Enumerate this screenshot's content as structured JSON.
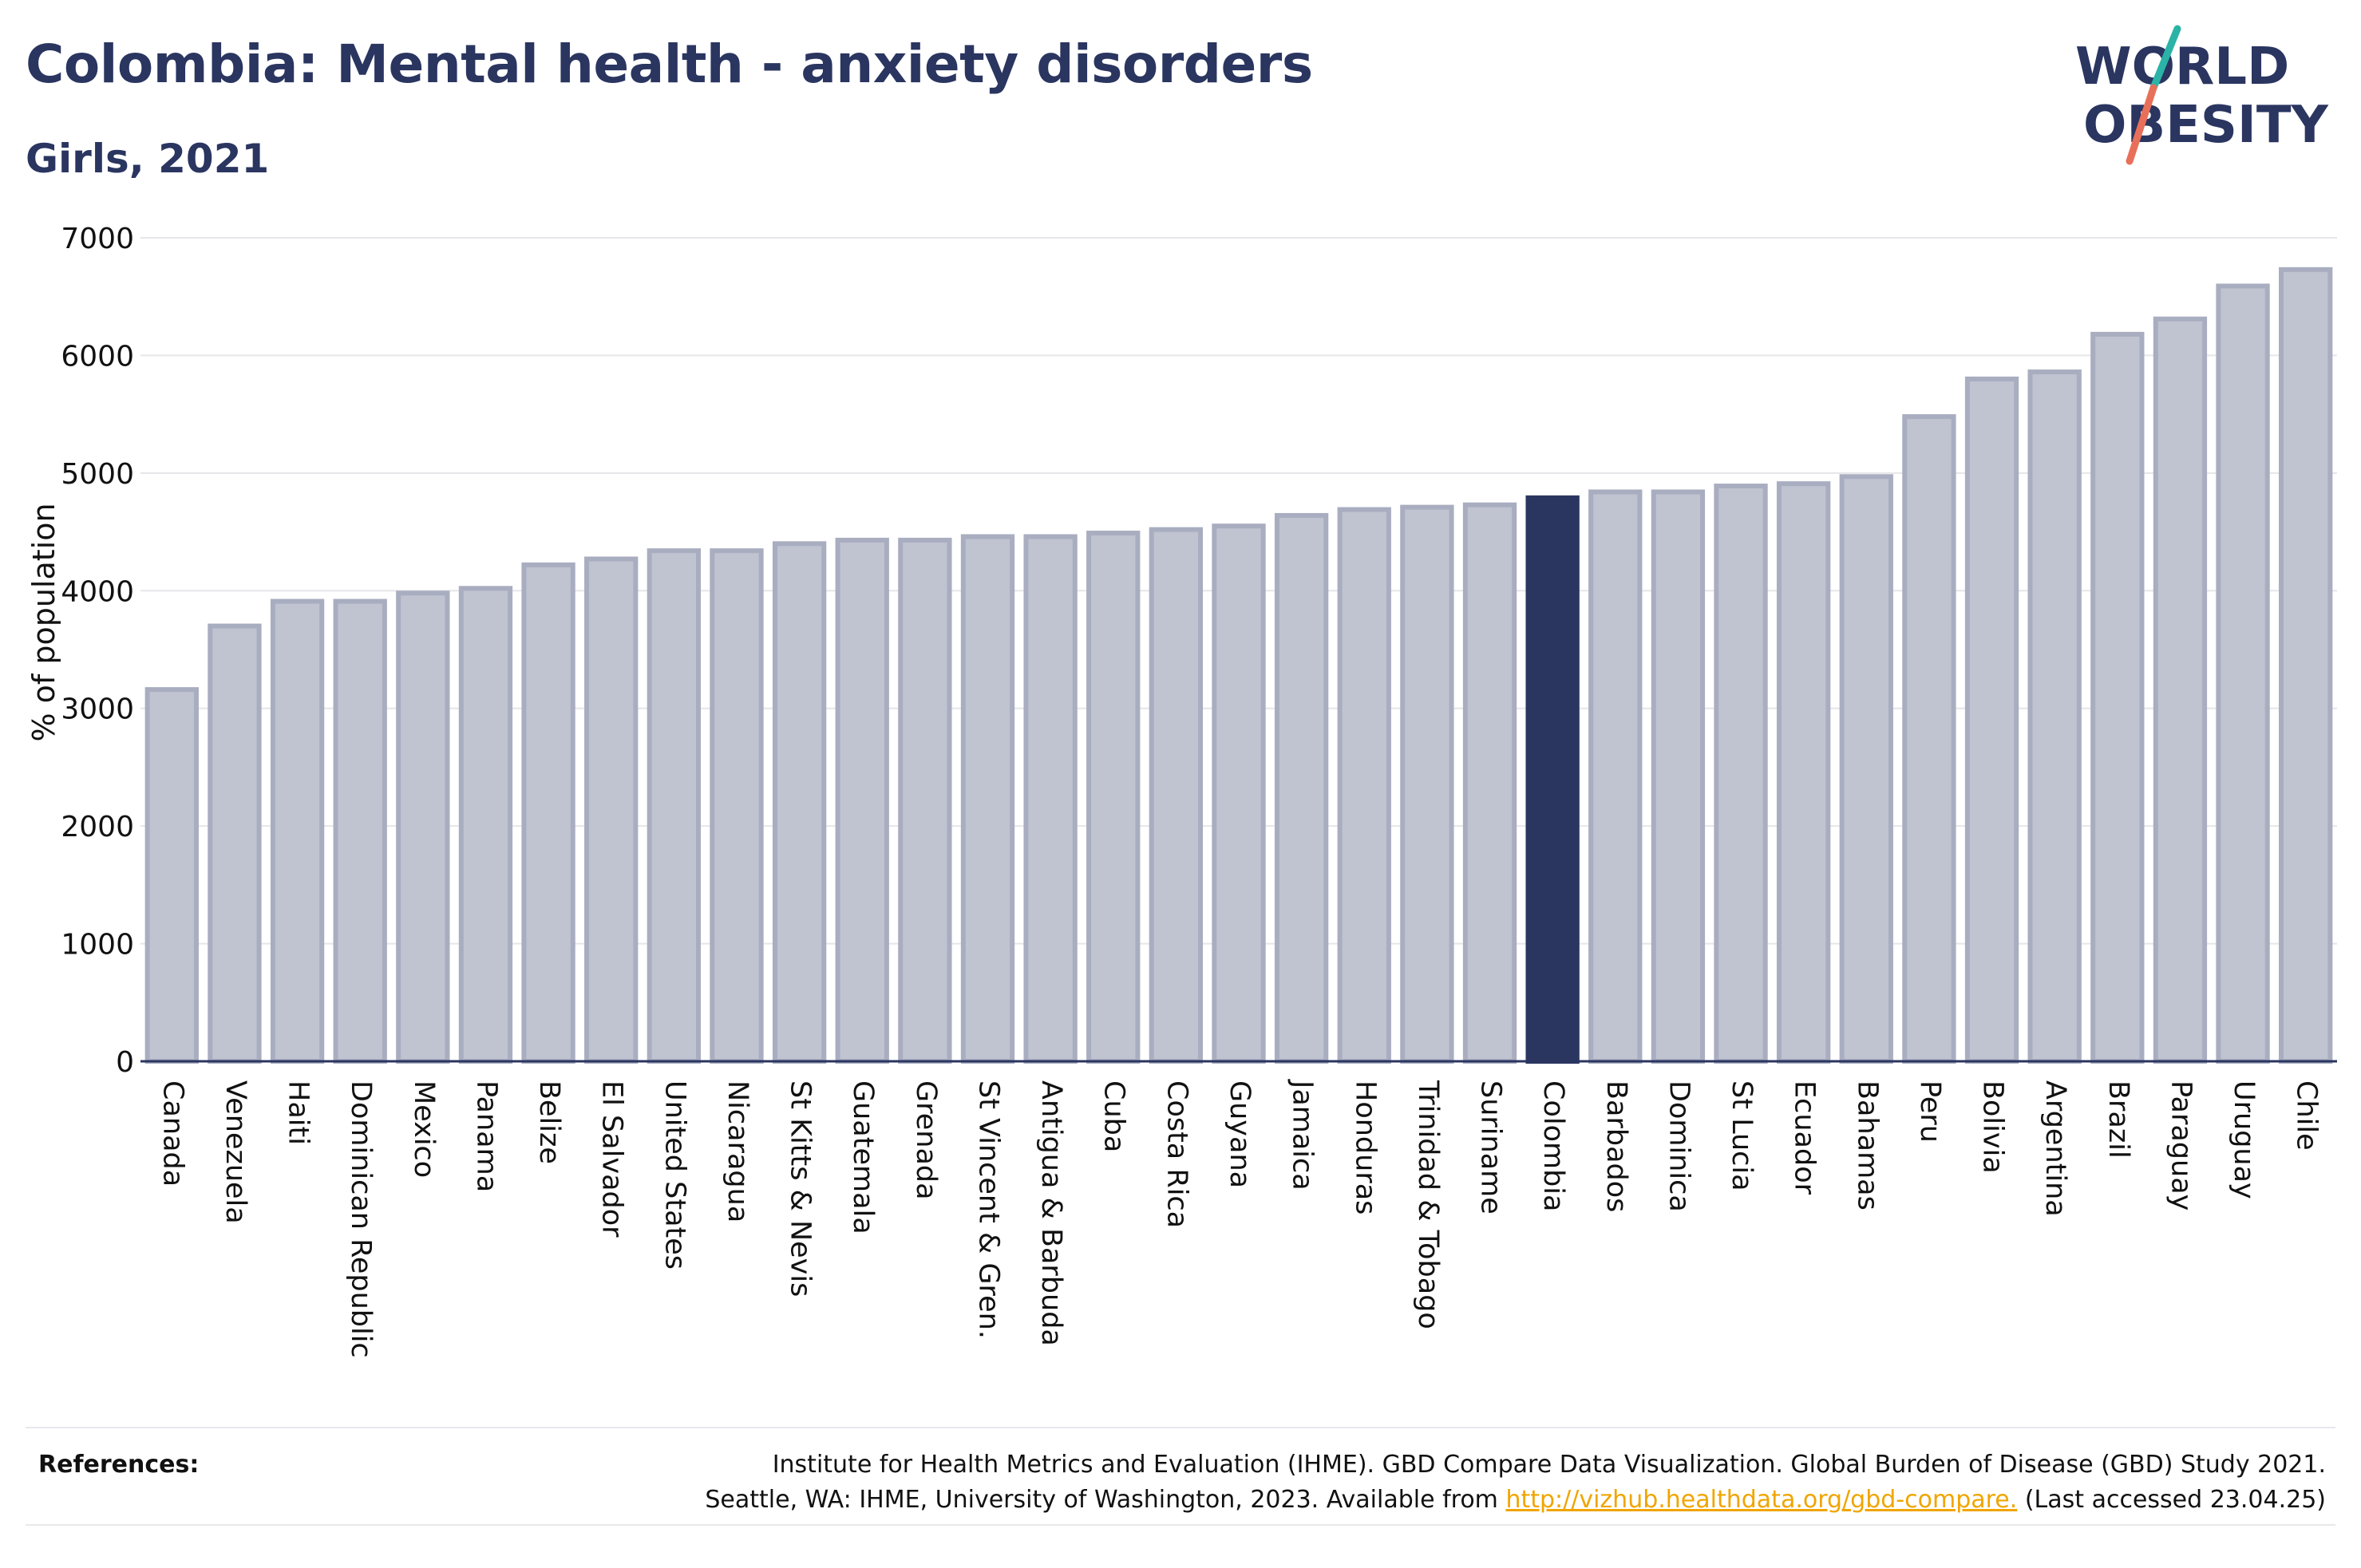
{
  "header": {
    "title": "Colombia: Mental health - anxiety disorders",
    "subtitle": "Girls, 2021"
  },
  "logo": {
    "line1": "WORLD",
    "line2": "OBESITY",
    "colors": {
      "text": "#2a3560",
      "slash_top": "#2ab3a6",
      "slash_bottom": "#e8705a"
    }
  },
  "chart_data": {
    "type": "bar",
    "ylabel": "% of population",
    "xlabel": "",
    "ylim": [
      0,
      7000
    ],
    "yticks": [
      0,
      1000,
      2000,
      3000,
      4000,
      5000,
      6000,
      7000
    ],
    "grid": true,
    "highlight": "Colombia",
    "colors": {
      "bar": "#c0c3d0",
      "bar_stroke": "#a9adc0",
      "highlight": "#2a3560"
    },
    "categories": [
      "Canada",
      "Venezuela",
      "Haiti",
      "Dominican Republic",
      "Mexico",
      "Panama",
      "Belize",
      "El Salvador",
      "United States",
      "Nicaragua",
      "St Kitts & Nevis",
      "Guatemala",
      "Grenada",
      "St Vincent & Gren.",
      "Antigua & Barbuda",
      "Cuba",
      "Costa Rica",
      "Guyana",
      "Jamaica",
      "Honduras",
      "Trinidad & Tobago",
      "Suriname",
      "Colombia",
      "Barbados",
      "Dominica",
      "St Lucia",
      "Ecuador",
      "Bahamas",
      "Peru",
      "Bolivia",
      "Argentina",
      "Brazil",
      "Paraguay",
      "Uruguay",
      "Chile"
    ],
    "values": [
      3160,
      3700,
      3910,
      3910,
      3980,
      4020,
      4220,
      4270,
      4340,
      4340,
      4400,
      4430,
      4430,
      4460,
      4460,
      4490,
      4520,
      4550,
      4640,
      4690,
      4710,
      4730,
      4790,
      4840,
      4840,
      4890,
      4910,
      4970,
      5480,
      5800,
      5860,
      6180,
      6310,
      6590,
      6730
    ]
  },
  "references": {
    "label": "References:",
    "line1": "Institute for Health Metrics and Evaluation (IHME). GBD Compare Data Visualization. Global Burden of Disease (GBD) Study 2021.",
    "line2_prefix": "Seattle, WA: IHME, University of Washington, 2023. Available from ",
    "link": "http://vizhub.healthdata.org/gbd-compare.",
    "line2_suffix": " (Last accessed 23.04.25)"
  }
}
